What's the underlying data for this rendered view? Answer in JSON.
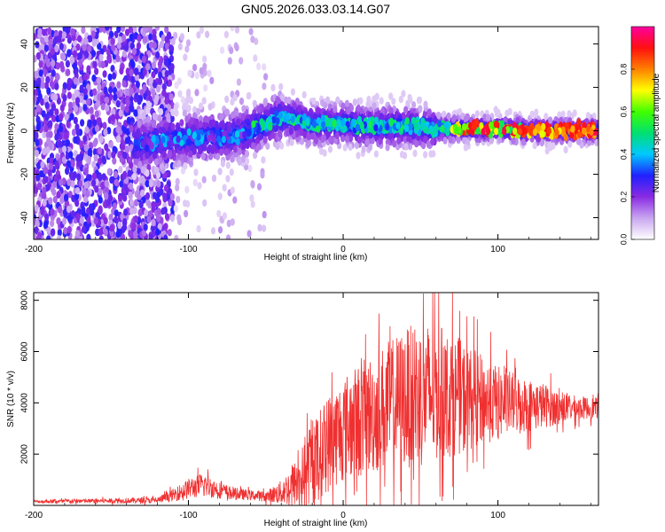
{
  "title": "GN05.2026.033.03.14.G07",
  "colors": {
    "snr_line": "#f03030",
    "frame": "#000000"
  },
  "chart_data": [
    {
      "type": "heatmap",
      "name": "spectrogram",
      "xlabel": "Height of straight line (km)",
      "ylabel": "Frequency (Hz)",
      "xlim": [
        -200,
        165
      ],
      "ylim": [
        -50,
        48
      ],
      "xticks": [
        -200,
        -100,
        0,
        100
      ],
      "xtick_labels": [
        "-200",
        "-100",
        "0",
        "100"
      ],
      "yticks": [
        -40,
        -20,
        0,
        20,
        40
      ],
      "ytick_labels": [
        "-40",
        "-20",
        "0",
        "20",
        "40"
      ],
      "description_series": {
        "name": "Peak frequency track",
        "x": [
          -130,
          -110,
          -90,
          -70,
          -60,
          -50,
          -45,
          -40,
          -30,
          -20,
          -10,
          0,
          20,
          40,
          60,
          80,
          100,
          120,
          140,
          165
        ],
        "y": [
          -6,
          -4,
          -3,
          -2,
          0,
          3,
          5,
          6,
          5,
          3,
          3,
          3,
          2,
          2,
          1,
          1,
          1,
          0,
          0,
          0
        ]
      },
      "colorbar": {
        "label": "Normalized spectral amplitude",
        "range": [
          0,
          1
        ],
        "ticks": [
          0.0,
          0.2,
          0.4,
          0.6,
          0.8
        ],
        "tick_labels": [
          "0.0",
          "0.2",
          "0.4",
          "0.6",
          "0.8"
        ],
        "colormap": [
          "#ffffff",
          "#c9a6f0",
          "#8a2be2",
          "#2020ff",
          "#00c8ff",
          "#00e070",
          "#40ff00",
          "#ffff00",
          "#ff8000",
          "#ff1010",
          "#ff00a0"
        ]
      }
    },
    {
      "type": "line",
      "name": "snr",
      "xlabel": "Height of straight line (km)",
      "ylabel": "SNR (10 * v/v)",
      "xlim": [
        -200,
        165
      ],
      "ylim": [
        0,
        8300
      ],
      "xticks": [
        -200,
        -100,
        0,
        100
      ],
      "xtick_labels": [
        "-200",
        "-100",
        "0",
        "100"
      ],
      "yticks": [
        2000,
        4000,
        6000,
        8000
      ],
      "ytick_labels": [
        "2000",
        "4000",
        "6000",
        "8000"
      ],
      "envelope": {
        "x": [
          -200,
          -150,
          -120,
          -110,
          -100,
          -90,
          -80,
          -70,
          -60,
          -50,
          -40,
          -30,
          -20,
          -10,
          0,
          10,
          20,
          30,
          40,
          50,
          60,
          70,
          80,
          90,
          100,
          110,
          120,
          130,
          140,
          150,
          165
        ],
        "mean": [
          150,
          180,
          200,
          400,
          650,
          800,
          600,
          450,
          400,
          350,
          500,
          900,
          1600,
          2400,
          3000,
          3300,
          3600,
          3900,
          4200,
          4300,
          4400,
          4300,
          4200,
          4100,
          4000,
          4000,
          3900,
          3900,
          3800,
          3800,
          3800
        ],
        "spread": [
          80,
          120,
          150,
          300,
          500,
          600,
          400,
          300,
          250,
          250,
          600,
          1200,
          2000,
          2400,
          2600,
          2800,
          3000,
          3200,
          3400,
          3600,
          3400,
          3000,
          2600,
          2200,
          1800,
          1500,
          1300,
          1100,
          800,
          600,
          500
        ]
      }
    }
  ]
}
